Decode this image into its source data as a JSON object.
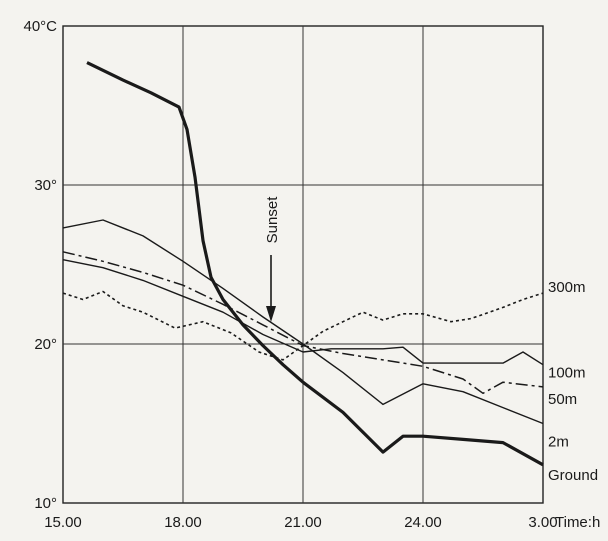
{
  "chart_data": {
    "type": "line",
    "xlabel": "Time:h",
    "ylabel": "",
    "x_ticks": [
      "15.00",
      "18.00",
      "21.00",
      "24.00",
      "3.00"
    ],
    "y_ticks": [
      "10°",
      "20°",
      "30°",
      "40°C"
    ],
    "xlim": [
      15,
      27
    ],
    "ylim": [
      10,
      40
    ],
    "grid": true,
    "annotation": "Sunset",
    "annotation_x": 20.2,
    "series": [
      {
        "name": "300m",
        "style": "dotted",
        "x": [
          15,
          15.5,
          16,
          16.5,
          17,
          17.8,
          18.5,
          19.2,
          19.9,
          20.5,
          21,
          21.5,
          22,
          22.5,
          23,
          23.5,
          24,
          24.7,
          25.2,
          26,
          26.5,
          27
        ],
        "y": [
          23.2,
          22.8,
          23.3,
          22.4,
          22,
          21.0,
          21.4,
          20.7,
          19.5,
          19.0,
          19.9,
          20.8,
          21.4,
          22.0,
          21.5,
          21.9,
          21.9,
          21.4,
          21.6,
          22.3,
          22.8,
          23.2
        ]
      },
      {
        "name": "100m",
        "style": "solid-thin",
        "x": [
          15,
          16,
          17,
          18,
          19,
          20,
          21,
          21.7,
          22.5,
          23,
          23.5,
          24,
          24.5,
          25,
          26,
          26.5,
          27
        ],
        "y": [
          25.3,
          24.8,
          24.0,
          23.0,
          22.0,
          20.6,
          19.5,
          19.7,
          19.7,
          19.7,
          19.8,
          18.8,
          18.8,
          18.8,
          18.8,
          19.5,
          18.7
        ]
      },
      {
        "name": "50m",
        "style": "dash-dot",
        "x": [
          15,
          16,
          17,
          18,
          19,
          20,
          21,
          22,
          23,
          24,
          25,
          25.5,
          26,
          27
        ],
        "y": [
          25.8,
          25.2,
          24.5,
          23.7,
          22.5,
          21.2,
          19.9,
          19.4,
          19.0,
          18.6,
          17.8,
          16.9,
          17.6,
          17.3
        ]
      },
      {
        "name": "2m",
        "style": "solid-thin",
        "x": [
          15,
          16,
          17,
          18,
          19,
          20,
          21,
          22,
          23,
          24,
          25,
          26,
          27
        ],
        "y": [
          27.3,
          27.8,
          26.8,
          25.2,
          23.5,
          21.7,
          20.0,
          18.2,
          16.2,
          17.5,
          17.0,
          16.0,
          15.0
        ]
      },
      {
        "name": "Ground",
        "style": "solid-thick",
        "x": [
          15.6,
          16.5,
          17.2,
          17.9,
          18.1,
          18.3,
          18.5,
          18.7,
          19,
          19.5,
          20,
          20.5,
          21,
          22,
          23,
          23.5,
          24,
          25,
          26,
          27
        ],
        "y": [
          37.7,
          36.6,
          35.8,
          34.9,
          33.5,
          30.5,
          26.5,
          24.2,
          22.8,
          21.2,
          19.9,
          18.7,
          17.6,
          15.7,
          13.2,
          14.2,
          14.2,
          14.0,
          13.8,
          12.4
        ]
      }
    ]
  }
}
